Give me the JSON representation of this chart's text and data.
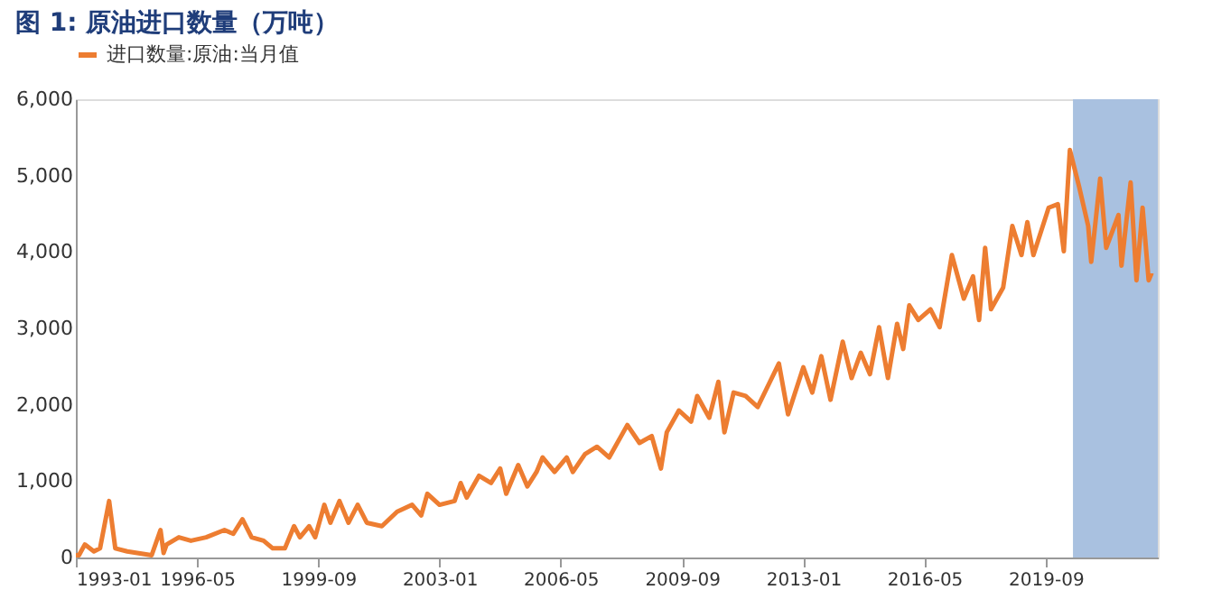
{
  "chart_data": {
    "type": "line",
    "title": "图 1: 原油进口数量（万吨）",
    "x": [
      "1993-01",
      "1993-02",
      "1993-04",
      "1993-07",
      "1993-09",
      "1993-12",
      "1994-02",
      "1994-06",
      "1995-02",
      "1995-05",
      "1995-06",
      "1995-07",
      "1995-11",
      "1996-03",
      "1996-08",
      "1997-02",
      "1997-05",
      "1997-08",
      "1997-11",
      "1998-03",
      "1998-06",
      "1998-10",
      "1999-01",
      "1999-03",
      "1999-06",
      "1999-08",
      "1999-11",
      "2000-01",
      "2000-04",
      "2000-07",
      "2000-10",
      "2001-01",
      "2001-06",
      "2001-11",
      "2002-04",
      "2002-07",
      "2002-09",
      "2003-01",
      "2003-06",
      "2003-08",
      "2003-10",
      "2004-02",
      "2004-06",
      "2004-09",
      "2004-11",
      "2005-03",
      "2005-06",
      "2005-09",
      "2005-11",
      "2006-03",
      "2006-07",
      "2006-09",
      "2007-01",
      "2007-05",
      "2007-09",
      "2008-03",
      "2008-07",
      "2008-11",
      "2009-02",
      "2009-04",
      "2009-08",
      "2009-12",
      "2010-02",
      "2010-06",
      "2010-09",
      "2010-11",
      "2011-02",
      "2011-06",
      "2011-10",
      "2012-02",
      "2012-05",
      "2012-08",
      "2013-01",
      "2013-04",
      "2013-07",
      "2013-10",
      "2014-02",
      "2014-05",
      "2014-08",
      "2014-11",
      "2015-02",
      "2015-05",
      "2015-08",
      "2015-10",
      "2015-12",
      "2016-03",
      "2016-07",
      "2016-10",
      "2017-02",
      "2017-06",
      "2017-09",
      "2017-11",
      "2018-01",
      "2018-03",
      "2018-07",
      "2018-10",
      "2019-01",
      "2019-03",
      "2019-05",
      "2019-10",
      "2020-01",
      "2020-03",
      "2020-05",
      "2020-08",
      "2020-11",
      "2020-12",
      "2021-03",
      "2021-05",
      "2021-09",
      "2021-10",
      "2022-01",
      "2022-03",
      "2022-05",
      "2022-07",
      "2022-08"
    ],
    "series": [
      {
        "name": "进口数量:原油:当月值",
        "color": "#ed7d31",
        "values": [
          30,
          30,
          170,
          80,
          120,
          740,
          120,
          80,
          30,
          360,
          60,
          170,
          265,
          220,
          265,
          360,
          310,
          500,
          265,
          220,
          120,
          120,
          410,
          265,
          410,
          265,
          690,
          455,
          740,
          455,
          690,
          455,
          410,
          600,
          690,
          550,
          835,
          690,
          740,
          975,
          785,
          1070,
          975,
          1165,
          835,
          1210,
          930,
          1120,
          1310,
          1120,
          1310,
          1120,
          1355,
          1450,
          1310,
          1735,
          1500,
          1590,
          1165,
          1640,
          1925,
          1780,
          2115,
          1830,
          2300,
          1640,
          2160,
          2115,
          1970,
          2300,
          2540,
          1875,
          2490,
          2160,
          2635,
          2065,
          2825,
          2350,
          2680,
          2400,
          3015,
          2350,
          3060,
          2730,
          3300,
          3110,
          3250,
          3015,
          3960,
          3390,
          3680,
          3110,
          4055,
          3250,
          3535,
          4340,
          3960,
          4390,
          3960,
          4580,
          4625,
          4010,
          5335,
          4860,
          4340,
          3870,
          4960,
          4055,
          4485,
          3820,
          4910,
          3630,
          4580,
          3630,
          3725
        ]
      }
    ],
    "xlim": [
      "1993-01",
      "2022-10"
    ],
    "xticks": [
      "1993-01",
      "1996-05",
      "1999-09",
      "2003-01",
      "2006-05",
      "2009-09",
      "2013-01",
      "2016-05",
      "2019-09"
    ],
    "ylim": [
      0,
      6000
    ],
    "yticks": [
      0,
      {
        "value": 1000,
        "label": "1,000"
      },
      {
        "value": 2000,
        "label": "2,000"
      },
      {
        "value": 3000,
        "label": "3,000"
      },
      {
        "value": 4000,
        "label": "4,000"
      },
      {
        "value": 5000,
        "label": "5,000"
      },
      {
        "value": 6000,
        "label": "6,000"
      }
    ],
    "bands": [
      {
        "axis": "x",
        "from": "2020-06",
        "to": "2022-10",
        "color": "#a9c1e0"
      }
    ],
    "legend": "top",
    "grid": false,
    "marker": "none",
    "line_style": "solid"
  }
}
